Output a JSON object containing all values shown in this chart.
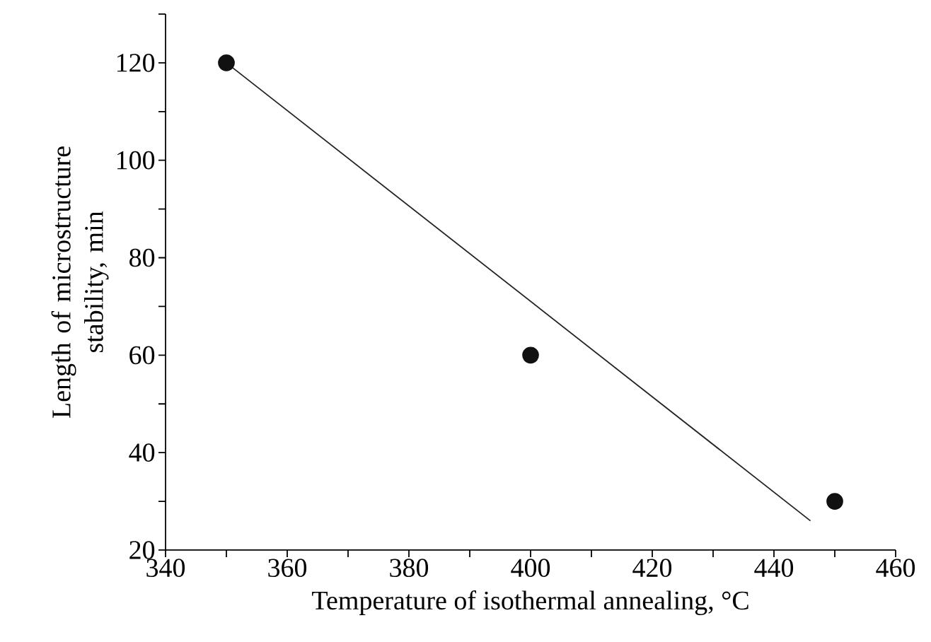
{
  "chart_data": {
    "type": "scatter",
    "xlabel": "Temperature of isothermal annealing, °C",
    "ylabel": "Length of microstructure stability, min",
    "x": [
      350,
      400,
      450
    ],
    "series": [
      {
        "color": "#111111",
        "marker": "circle",
        "values": [
          120,
          60,
          30
        ]
      },
      {
        "type": "line",
        "color": "#222222",
        "marker": "none",
        "x": [
          350,
          446
        ],
        "values": [
          120,
          26
        ]
      }
    ],
    "xlim": [
      340,
      460
    ],
    "ylim": [
      20,
      130
    ],
    "xticks": [
      340,
      {
        "value": 350,
        "label": null
      },
      360,
      {
        "value": 370,
        "label": null
      },
      380,
      {
        "value": 390,
        "label": null
      },
      400,
      {
        "value": 410,
        "label": null
      },
      420,
      {
        "value": 430,
        "label": null
      },
      440,
      {
        "value": 450,
        "label": null
      },
      460
    ],
    "yticks": [
      20,
      {
        "value": 30,
        "label": null
      },
      40,
      {
        "value": 50,
        "label": null
      },
      60,
      {
        "value": 70,
        "label": null
      },
      80,
      {
        "value": 90,
        "label": null
      },
      100,
      {
        "value": 110,
        "label": null
      },
      120,
      {
        "value": 130,
        "label": null
      }
    ]
  }
}
